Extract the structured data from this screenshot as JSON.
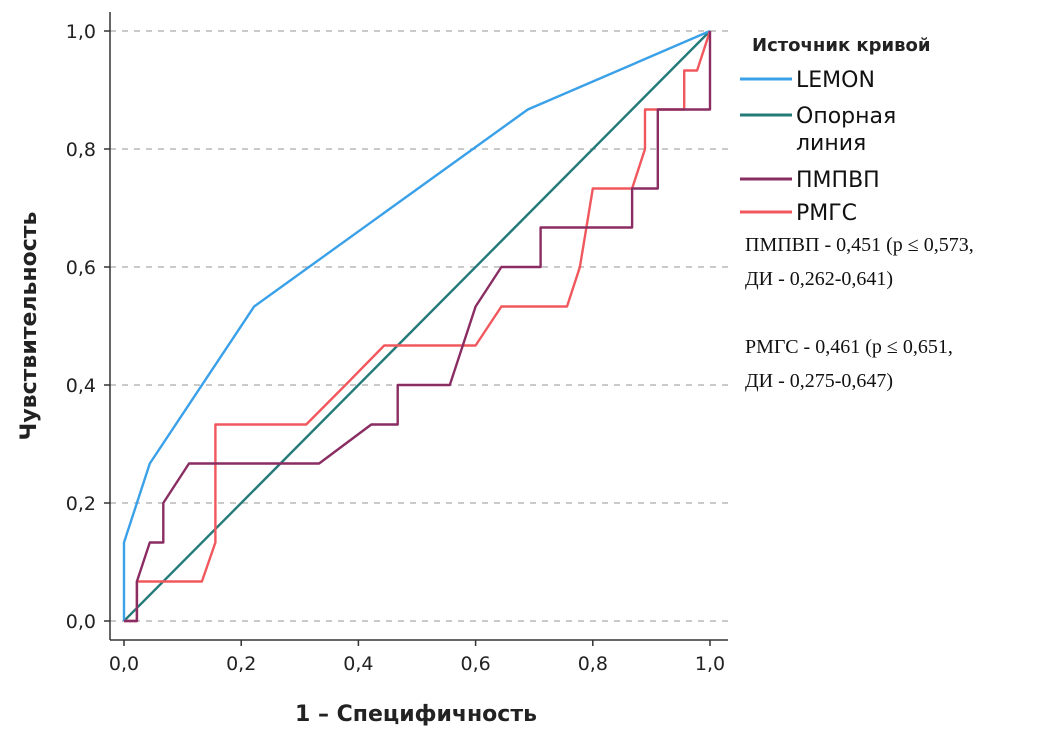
{
  "chart_data": {
    "type": "line",
    "xlabel": "1 – Специфичность",
    "ylabel": "Чувствительность",
    "xlim": [
      0,
      1
    ],
    "ylim": [
      0,
      1
    ],
    "xticks": [
      "0,0",
      "0,2",
      "0,4",
      "0,6",
      "0,8",
      "1,0"
    ],
    "yticks": [
      "0,0",
      "0,2",
      "0,4",
      "0,6",
      "0,8",
      "1,0"
    ],
    "grid": "horizontal dashed",
    "legend": {
      "title": "Источник кривой",
      "placement": "right",
      "entries": [
        {
          "label_lines": [
            "LEMON"
          ],
          "color": "#3aa0e8"
        },
        {
          "label_lines": [
            "Опорная",
            "линия"
          ],
          "color": "#237a79"
        },
        {
          "label_lines": [
            "ПМПВП"
          ],
          "color": "#8a2d62"
        },
        {
          "label_lines": [
            "РМГС"
          ],
          "color": "#f0585e"
        }
      ]
    },
    "annotations": [
      "ПМПВП - 0,451 (p ≤  0,573,",
      "ДИ - 0,262-0,641)",
      "РМГС - 0,461 (p ≤  0,651,",
      "ДИ - 0,275-0,647)"
    ],
    "series": [
      {
        "name": "LEMON",
        "color": "#3aa0e8",
        "points": [
          [
            0,
            0
          ],
          [
            0,
            0.133
          ],
          [
            0.044,
            0.267
          ],
          [
            0.222,
            0.533
          ],
          [
            0.689,
            0.867
          ],
          [
            1,
            1
          ]
        ]
      },
      {
        "name": "Опорная линия",
        "color": "#237a79",
        "points": [
          [
            0,
            0
          ],
          [
            1,
            1
          ]
        ]
      },
      {
        "name": "ПМПВП",
        "color": "#8a2d62",
        "points": [
          [
            0,
            0
          ],
          [
            0.022,
            0
          ],
          [
            0.022,
            0.067
          ],
          [
            0.044,
            0.133
          ],
          [
            0.067,
            0.133
          ],
          [
            0.067,
            0.2
          ],
          [
            0.111,
            0.267
          ],
          [
            0.333,
            0.267
          ],
          [
            0.422,
            0.333
          ],
          [
            0.467,
            0.333
          ],
          [
            0.467,
            0.4
          ],
          [
            0.556,
            0.4
          ],
          [
            0.6,
            0.533
          ],
          [
            0.644,
            0.6
          ],
          [
            0.711,
            0.6
          ],
          [
            0.711,
            0.667
          ],
          [
            0.867,
            0.667
          ],
          [
            0.867,
            0.733
          ],
          [
            0.911,
            0.733
          ],
          [
            0.911,
            0.867
          ],
          [
            0.978,
            0.867
          ],
          [
            1,
            0.867
          ],
          [
            1,
            1
          ]
        ]
      },
      {
        "name": "РМГС",
        "color": "#f0585e",
        "points": [
          [
            0,
            0
          ],
          [
            0.022,
            0
          ],
          [
            0.022,
            0.067
          ],
          [
            0.133,
            0.067
          ],
          [
            0.156,
            0.133
          ],
          [
            0.156,
            0.333
          ],
          [
            0.311,
            0.333
          ],
          [
            0.378,
            0.4
          ],
          [
            0.444,
            0.467
          ],
          [
            0.6,
            0.467
          ],
          [
            0.644,
            0.533
          ],
          [
            0.756,
            0.533
          ],
          [
            0.778,
            0.6
          ],
          [
            0.8,
            0.733
          ],
          [
            0.867,
            0.733
          ],
          [
            0.889,
            0.8
          ],
          [
            0.889,
            0.867
          ],
          [
            0.956,
            0.867
          ],
          [
            0.956,
            0.933
          ],
          [
            0.978,
            0.933
          ],
          [
            1,
            1
          ]
        ]
      }
    ]
  }
}
